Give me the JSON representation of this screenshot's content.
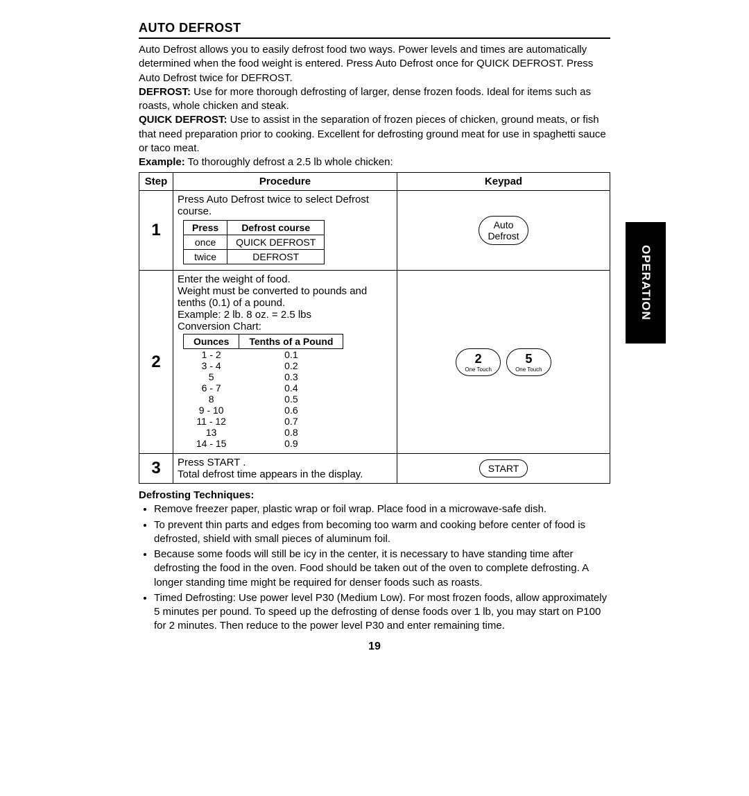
{
  "title": "AUTO DEFROST",
  "sideTab": "OPERATION",
  "intro": {
    "p1": "Auto Defrost allows you to easily defrost food two ways. Power levels and times are automatically determined when the food weight is entered. Press Auto Defrost once for QUICK DEFROST. Press Auto Defrost twice for DEFROST.",
    "defLabel": "DEFROST:",
    "defText": " Use for more thorough defrosting of larger, dense frozen foods. Ideal for items such as roasts, whole chicken and steak.",
    "quickLabel": "QUICK DEFROST:",
    "quickText": " Use to assist in the separation of frozen pieces of chicken, ground meats, or fish that need preparation prior to cooking. Excellent for defrosting ground meat for use in spaghetti sauce or taco meat.",
    "exLabel": "Example:",
    "exText": " To thoroughly defrost a 2.5 lb whole chicken:"
  },
  "headers": {
    "step": "Step",
    "proc": "Procedure",
    "keypad": "Keypad"
  },
  "step1": {
    "num": "1",
    "textA": "Press ",
    "textB": "Auto Defrost",
    "textC": " twice to select Defrost course.",
    "tbl": {
      "h1": "Press",
      "h2": "Defrost course",
      "r1c1": "once",
      "r1c2": "QUICK DEFROST",
      "r2c1": "twice",
      "r2c2": "DEFROST"
    },
    "key": {
      "l1": "Auto",
      "l2": "Defrost"
    }
  },
  "step2": {
    "num": "2",
    "text": "Enter the weight of food.\nWeight must be converted to pounds and tenths (0.1) of a pound.\nExample: 2 lb. 8 oz. = 2.5 lbs",
    "convLabel": "Conversion Chart:",
    "conv": {
      "h1": "Ounces",
      "h2": "Tenths of a Pound",
      "rows": [
        [
          "1 - 2",
          "0.1"
        ],
        [
          "3 - 4",
          "0.2"
        ],
        [
          "5",
          "0.3"
        ],
        [
          "6 - 7",
          "0.4"
        ],
        [
          "8",
          "0.5"
        ],
        [
          "9 - 10",
          "0.6"
        ],
        [
          "11 - 12",
          "0.7"
        ],
        [
          "13",
          "0.8"
        ],
        [
          "14 - 15",
          "0.9"
        ]
      ]
    },
    "key": {
      "n1": "2",
      "n2": "5",
      "sub": "One Touch"
    }
  },
  "step3": {
    "num": "3",
    "textA": "Press ",
    "textB": "START",
    "textC": ".\nTotal defrost time appears in the display.",
    "key": "START"
  },
  "techLabel": "Defrosting Techniques:",
  "tech": {
    "t1": "Remove freezer paper, plastic wrap or foil wrap. Place food in a microwave-safe dish.",
    "t2": "To prevent thin parts and edges from becoming too warm and cooking before center of food is defrosted, shield with small pieces of aluminum foil.",
    "t3": "Because some foods will still be icy in the center, it is necessary to have standing time after defrosting the food in the oven. Food should be taken out of the oven to complete defrosting. A longer standing time might be required for denser foods such as roasts.",
    "t4a": "Timed Defrosting:",
    "t4b": " Use power level ",
    "t4c": "P30",
    "t4d": " (Medium Low). For most frozen foods, allow approximately 5 minutes per pound. To speed up the defrosting of dense foods over 1 lb, you may start on ",
    "t4e": "P100 for 2 minutes.",
    "t4f": " Then reduce to the power level ",
    "t4g": "P30",
    "t4h": " and enter remaining time."
  },
  "pageNum": "19"
}
